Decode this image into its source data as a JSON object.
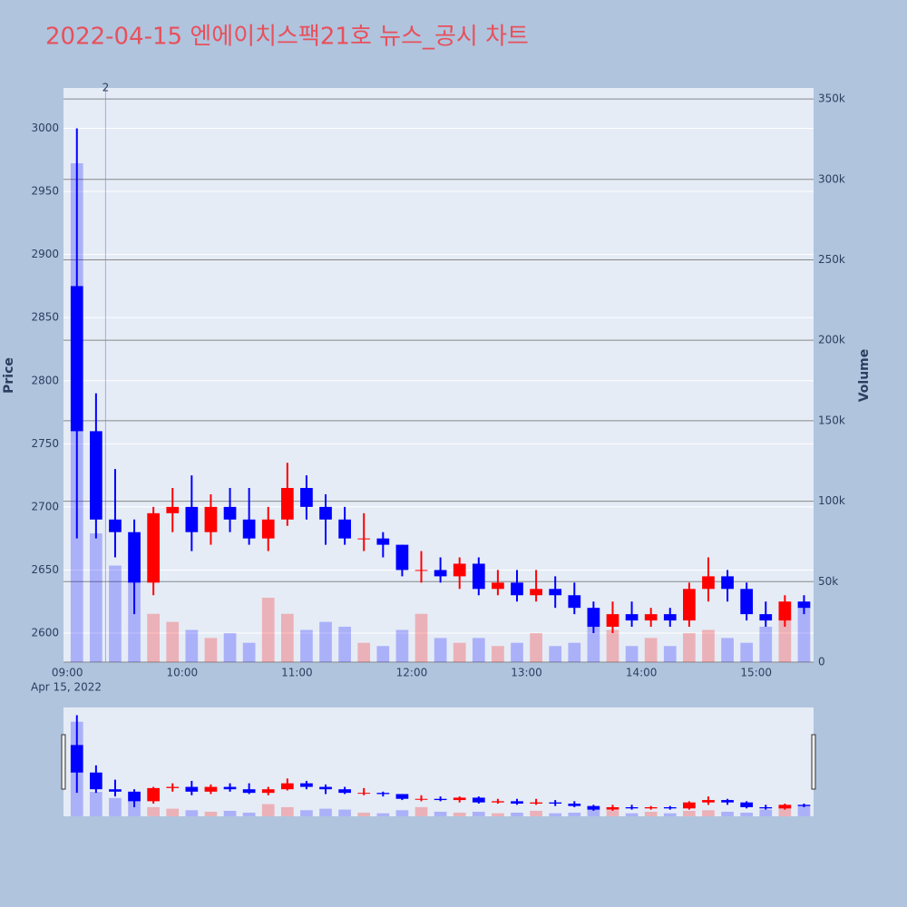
{
  "chart_data": {
    "type": "candlestick",
    "title": "2022-04-15 엔에이치스팩21호 뉴스_공시 차트",
    "x_subtitle": "Apr 15, 2022",
    "y_title": "Price",
    "y2_title": "Volume",
    "increasing_color": "#ff0000",
    "decreasing_color": "#0000ff",
    "x": [
      "09:00",
      "09:10",
      "09:20",
      "09:30",
      "09:40",
      "09:50",
      "10:00",
      "10:10",
      "10:20",
      "10:30",
      "10:40",
      "10:50",
      "11:00",
      "11:10",
      "11:20",
      "11:30",
      "11:40",
      "11:50",
      "12:00",
      "12:10",
      "12:20",
      "12:30",
      "12:40",
      "12:50",
      "13:00",
      "13:10",
      "13:20",
      "13:30",
      "13:40",
      "13:50",
      "14:00",
      "14:10",
      "14:20",
      "14:30",
      "14:40",
      "14:50",
      "15:00",
      "15:10",
      "15:20"
    ],
    "open": [
      2875,
      2760,
      2690,
      2680,
      2640,
      2695,
      2700,
      2680,
      2700,
      2690,
      2675,
      2690,
      2715,
      2700,
      2690,
      2675,
      2675,
      2670,
      2650,
      2650,
      2645,
      2655,
      2635,
      2640,
      2630,
      2635,
      2630,
      2620,
      2605,
      2615,
      2610,
      2615,
      2610,
      2635,
      2645,
      2635,
      2615,
      2610,
      2625
    ],
    "high": [
      3000,
      2790,
      2730,
      2690,
      2700,
      2715,
      2725,
      2710,
      2715,
      2715,
      2700,
      2735,
      2725,
      2710,
      2700,
      2695,
      2680,
      2670,
      2665,
      2660,
      2660,
      2660,
      2650,
      2650,
      2650,
      2645,
      2640,
      2625,
      2625,
      2625,
      2620,
      2620,
      2640,
      2660,
      2650,
      2640,
      2625,
      2630,
      2630
    ],
    "low": [
      2675,
      2675,
      2660,
      2615,
      2630,
      2680,
      2665,
      2670,
      2680,
      2670,
      2665,
      2685,
      2690,
      2670,
      2670,
      2665,
      2660,
      2645,
      2640,
      2640,
      2635,
      2630,
      2630,
      2625,
      2625,
      2620,
      2615,
      2600,
      2600,
      2605,
      2605,
      2605,
      2605,
      2625,
      2625,
      2610,
      2605,
      2605,
      2615
    ],
    "close": [
      2760,
      2690,
      2680,
      2640,
      2695,
      2700,
      2680,
      2700,
      2690,
      2675,
      2690,
      2715,
      2700,
      2690,
      2675,
      2675,
      2670,
      2650,
      2650,
      2645,
      2655,
      2635,
      2640,
      2630,
      2635,
      2630,
      2620,
      2605,
      2615,
      2610,
      2615,
      2610,
      2635,
      2645,
      2635,
      2615,
      2610,
      2625,
      2620
    ],
    "volume": [
      310000,
      80000,
      60000,
      70000,
      30000,
      25000,
      20000,
      15000,
      18000,
      12000,
      40000,
      30000,
      20000,
      25000,
      22000,
      12000,
      10000,
      20000,
      30000,
      15000,
      12000,
      15000,
      10000,
      12000,
      18000,
      10000,
      12000,
      25000,
      20000,
      10000,
      15000,
      10000,
      18000,
      20000,
      15000,
      12000,
      22000,
      30000,
      35000
    ],
    "xlim": [
      "08:58",
      "15:30"
    ],
    "xticks": [
      "09:00",
      "10:00",
      "11:00",
      "12:00",
      "13:00",
      "14:00",
      "15:00"
    ],
    "ylim": [
      2577,
      3032
    ],
    "yticks": [
      2600,
      2650,
      2700,
      2750,
      2800,
      2850,
      2900,
      2950,
      3000
    ],
    "y2lim": [
      0,
      356800
    ],
    "y2ticks": [
      0,
      {
        "value": 50000,
        "label": "50k"
      },
      {
        "value": 100000,
        "label": "100k"
      },
      {
        "value": 150000,
        "label": "150k"
      },
      {
        "value": 200000,
        "label": "200k"
      },
      {
        "value": 250000,
        "label": "250k"
      },
      {
        "value": 300000,
        "label": "300k"
      },
      {
        "value": 350000,
        "label": "350k"
      }
    ],
    "annotations": [
      {
        "x": "09:20",
        "text": "2"
      }
    ]
  }
}
